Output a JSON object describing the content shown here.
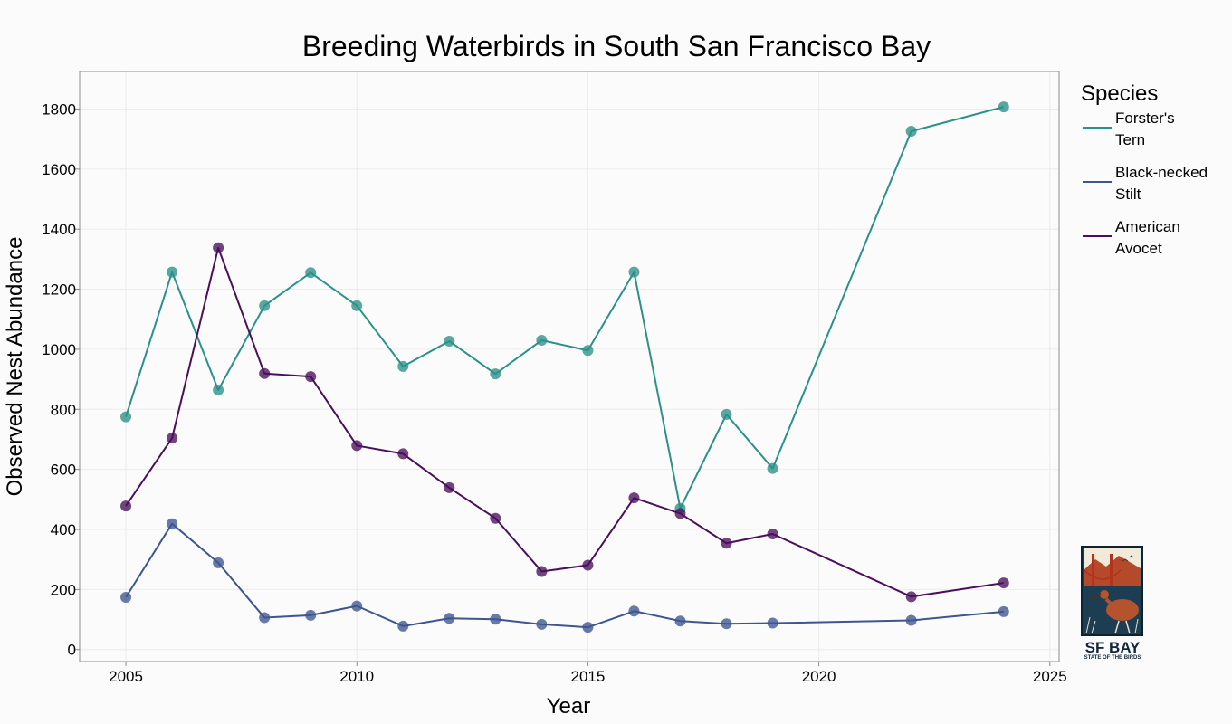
{
  "chart_data": {
    "type": "line",
    "title": "Breeding Waterbirds in South San Francisco Bay",
    "xlabel": "Year",
    "ylabel": "Observed Nest Abundance",
    "xlim": [
      2004,
      2025.2
    ],
    "ylim": [
      -40,
      1925
    ],
    "xticks": [
      2005,
      2010,
      2015,
      2020,
      2025
    ],
    "yticks": [
      0,
      200,
      400,
      600,
      800,
      1000,
      1200,
      1400,
      1600,
      1800
    ],
    "grid": true,
    "legend": {
      "title": "Species",
      "position": "right"
    },
    "series": [
      {
        "name": "Forster's Tern",
        "legend_lines": [
          "Forster's",
          "Tern"
        ],
        "color": "#2a9188",
        "x": [
          2005,
          2006,
          2007,
          2008,
          2009,
          2010,
          2011,
          2012,
          2013,
          2014,
          2015,
          2016,
          2017,
          2018,
          2019,
          2022,
          2024
        ],
        "y": [
          775,
          1257,
          864,
          1145,
          1255,
          1145,
          943,
          1027,
          918,
          1030,
          996,
          1257,
          470,
          783,
          603,
          1726,
          1807
        ]
      },
      {
        "name": "Black-necked Stilt",
        "legend_lines": [
          "Black-necked",
          "Stilt"
        ],
        "color": "#3d5690",
        "x": [
          2005,
          2006,
          2007,
          2008,
          2009,
          2010,
          2011,
          2012,
          2013,
          2014,
          2015,
          2016,
          2017,
          2018,
          2019,
          2022,
          2024
        ],
        "y": [
          174,
          419,
          289,
          106,
          114,
          145,
          78,
          104,
          101,
          84,
          74,
          128,
          95,
          86,
          88,
          97,
          126
        ]
      },
      {
        "name": "American Avocet",
        "legend_lines": [
          "American",
          "Avocet"
        ],
        "color": "#4a0f5c",
        "x": [
          2005,
          2006,
          2007,
          2008,
          2009,
          2010,
          2011,
          2012,
          2013,
          2014,
          2015,
          2016,
          2017,
          2018,
          2019,
          2022,
          2024
        ],
        "y": [
          478,
          704,
          1338,
          919,
          909,
          679,
          652,
          539,
          437,
          260,
          281,
          505,
          453,
          354,
          385,
          176,
          222
        ]
      }
    ]
  },
  "logo": {
    "name": "SF BAY",
    "tagline": "STATE OF THE BIRDS"
  }
}
